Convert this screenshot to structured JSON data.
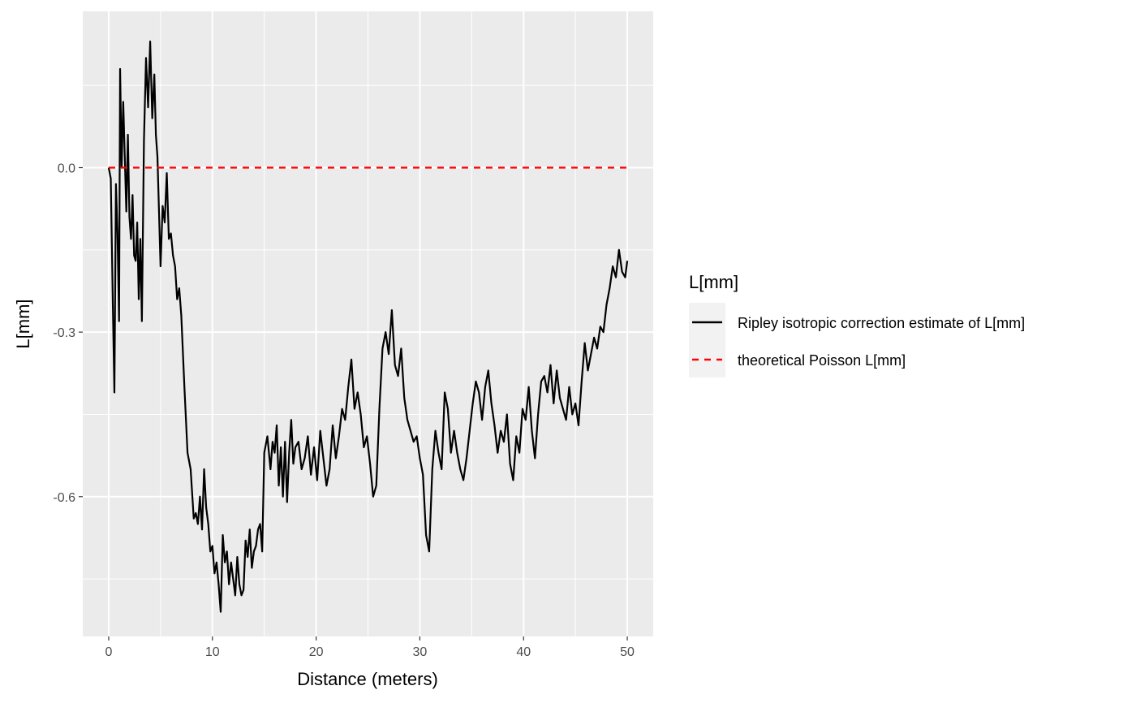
{
  "chart_data": {
    "type": "line",
    "xlabel": "Distance (meters)",
    "ylabel": "L[mm]",
    "xlim": [
      -2.5,
      52.5
    ],
    "ylim": [
      -0.855,
      0.285
    ],
    "x_ticks": [
      0,
      10,
      20,
      30,
      40,
      50
    ],
    "x_tick_labels": [
      "0",
      "10",
      "20",
      "30",
      "40",
      "50"
    ],
    "y_ticks": [
      0.0,
      -0.3,
      -0.6
    ],
    "y_tick_labels": [
      "0.0",
      "-0.3",
      "-0.6"
    ],
    "grid": true,
    "legend": {
      "title": "L[mm]",
      "placement": "right",
      "entries": [
        {
          "label": "Ripley isotropic correction estimate of L[mm]",
          "color": "#000000",
          "style": "solid"
        },
        {
          "label": "theoretical Poisson L[mm]",
          "color": "#ff0000",
          "style": "dashed"
        }
      ]
    },
    "series": [
      {
        "name": "Ripley isotropic correction estimate of L[mm]",
        "color": "#000000",
        "style": "solid",
        "x": [
          0,
          0.2,
          0.4,
          0.55,
          0.7,
          0.85,
          1.0,
          1.1,
          1.25,
          1.4,
          1.55,
          1.7,
          1.85,
          2.0,
          2.15,
          2.3,
          2.45,
          2.6,
          2.75,
          2.9,
          3.05,
          3.2,
          3.4,
          3.6,
          3.8,
          4.0,
          4.2,
          4.4,
          4.55,
          4.7,
          4.85,
          5.0,
          5.2,
          5.4,
          5.6,
          5.8,
          6.0,
          6.2,
          6.4,
          6.6,
          6.8,
          7.0,
          7.3,
          7.6,
          7.9,
          8.2,
          8.4,
          8.6,
          8.8,
          9.0,
          9.2,
          9.4,
          9.6,
          9.8,
          10.0,
          10.2,
          10.4,
          10.6,
          10.8,
          11.0,
          11.2,
          11.4,
          11.6,
          11.8,
          12.0,
          12.2,
          12.4,
          12.6,
          12.8,
          13.0,
          13.2,
          13.4,
          13.6,
          13.8,
          14.0,
          14.2,
          14.4,
          14.6,
          14.8,
          15.0,
          15.3,
          15.6,
          15.8,
          16.0,
          16.2,
          16.4,
          16.6,
          16.8,
          17.0,
          17.2,
          17.4,
          17.6,
          17.8,
          18.0,
          18.3,
          18.6,
          18.9,
          19.2,
          19.5,
          19.8,
          20.1,
          20.4,
          20.7,
          21.0,
          21.3,
          21.6,
          21.9,
          22.2,
          22.5,
          22.8,
          23.1,
          23.4,
          23.7,
          24.0,
          24.3,
          24.6,
          24.9,
          25.2,
          25.5,
          25.8,
          26.1,
          26.4,
          26.7,
          27.0,
          27.3,
          27.6,
          27.9,
          28.2,
          28.5,
          28.8,
          29.1,
          29.4,
          29.7,
          30.0,
          30.3,
          30.6,
          30.9,
          31.2,
          31.5,
          31.8,
          32.1,
          32.4,
          32.7,
          33.0,
          33.3,
          33.6,
          33.9,
          34.2,
          34.5,
          34.8,
          35.1,
          35.4,
          35.7,
          36.0,
          36.3,
          36.6,
          36.9,
          37.2,
          37.5,
          37.8,
          38.1,
          38.4,
          38.7,
          39.0,
          39.3,
          39.6,
          39.9,
          40.2,
          40.5,
          40.8,
          41.1,
          41.4,
          41.7,
          42.0,
          42.3,
          42.6,
          42.9,
          43.2,
          43.5,
          43.8,
          44.1,
          44.4,
          44.7,
          45.0,
          45.3,
          45.6,
          45.9,
          46.2,
          46.5,
          46.8,
          47.1,
          47.4,
          47.7,
          48.0,
          48.3,
          48.6,
          48.9,
          49.2,
          49.5,
          49.8,
          50.0
        ],
        "y": [
          0.0,
          -0.02,
          -0.25,
          -0.41,
          -0.03,
          -0.12,
          -0.28,
          0.18,
          0.0,
          0.12,
          0.02,
          -0.08,
          0.06,
          -0.09,
          -0.13,
          -0.05,
          -0.16,
          -0.17,
          -0.1,
          -0.24,
          -0.13,
          -0.28,
          0.05,
          0.2,
          0.11,
          0.23,
          0.09,
          0.17,
          0.06,
          0.02,
          -0.08,
          -0.18,
          -0.07,
          -0.1,
          -0.01,
          -0.13,
          -0.12,
          -0.16,
          -0.18,
          -0.24,
          -0.22,
          -0.27,
          -0.4,
          -0.52,
          -0.55,
          -0.64,
          -0.63,
          -0.65,
          -0.6,
          -0.66,
          -0.55,
          -0.62,
          -0.65,
          -0.7,
          -0.69,
          -0.74,
          -0.72,
          -0.76,
          -0.81,
          -0.67,
          -0.72,
          -0.7,
          -0.76,
          -0.72,
          -0.75,
          -0.78,
          -0.71,
          -0.76,
          -0.78,
          -0.77,
          -0.68,
          -0.71,
          -0.66,
          -0.73,
          -0.7,
          -0.69,
          -0.66,
          -0.65,
          -0.7,
          -0.52,
          -0.49,
          -0.55,
          -0.5,
          -0.52,
          -0.47,
          -0.58,
          -0.51,
          -0.6,
          -0.5,
          -0.61,
          -0.52,
          -0.46,
          -0.54,
          -0.51,
          -0.5,
          -0.55,
          -0.53,
          -0.49,
          -0.56,
          -0.51,
          -0.57,
          -0.48,
          -0.53,
          -0.58,
          -0.55,
          -0.47,
          -0.53,
          -0.49,
          -0.44,
          -0.46,
          -0.4,
          -0.35,
          -0.44,
          -0.41,
          -0.45,
          -0.51,
          -0.49,
          -0.54,
          -0.6,
          -0.58,
          -0.44,
          -0.33,
          -0.3,
          -0.34,
          -0.26,
          -0.36,
          -0.38,
          -0.33,
          -0.42,
          -0.46,
          -0.48,
          -0.5,
          -0.49,
          -0.53,
          -0.56,
          -0.67,
          -0.7,
          -0.55,
          -0.48,
          -0.52,
          -0.55,
          -0.41,
          -0.44,
          -0.52,
          -0.48,
          -0.52,
          -0.55,
          -0.57,
          -0.53,
          -0.48,
          -0.43,
          -0.39,
          -0.41,
          -0.46,
          -0.4,
          -0.37,
          -0.43,
          -0.47,
          -0.52,
          -0.48,
          -0.5,
          -0.45,
          -0.54,
          -0.57,
          -0.49,
          -0.52,
          -0.44,
          -0.46,
          -0.4,
          -0.48,
          -0.53,
          -0.45,
          -0.39,
          -0.38,
          -0.41,
          -0.36,
          -0.43,
          -0.37,
          -0.42,
          -0.44,
          -0.46,
          -0.4,
          -0.45,
          -0.43,
          -0.47,
          -0.39,
          -0.32,
          -0.37,
          -0.34,
          -0.31,
          -0.33,
          -0.29,
          -0.3,
          -0.25,
          -0.22,
          -0.18,
          -0.2,
          -0.15,
          -0.19,
          -0.2,
          -0.17
        ]
      },
      {
        "name": "theoretical Poisson L[mm]",
        "color": "#ff0000",
        "style": "dashed",
        "x": [
          0,
          50
        ],
        "y": [
          0.0,
          0.0
        ]
      }
    ]
  }
}
